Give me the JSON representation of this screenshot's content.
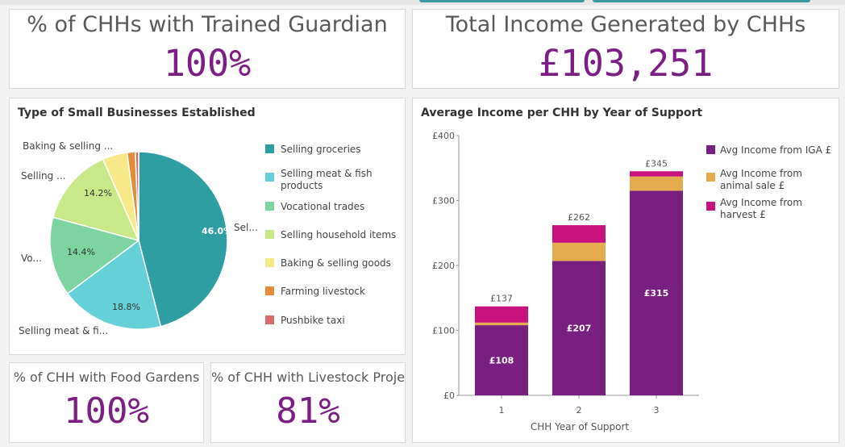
{
  "kpis": {
    "trained_guardian": {
      "title": "% of CHHs with Trained Guardian",
      "value": "100%"
    },
    "total_income": {
      "title": "Total Income Generated by CHHs",
      "value": "£103,251"
    },
    "food_gardens": {
      "title": "% of CHH with Food Gardens",
      "value": "100%"
    },
    "livestock_projects": {
      "title": "% of CHH with Livestock Proje...",
      "value": "81%"
    }
  },
  "chart_data": [
    {
      "type": "pie",
      "title": "Type of Small Businesses Established",
      "categories": [
        "Selling groceries",
        "Selling meat & fish products",
        "Vocational trades",
        "Selling household items",
        "Baking & selling goods",
        "Farming livestock",
        "Pushbike taxi"
      ],
      "values": [
        46.0,
        18.8,
        14.4,
        14.2,
        4.5,
        1.5,
        0.6
      ],
      "colors": [
        "#2e9ea3",
        "#66d0d9",
        "#7dd4a0",
        "#c8e88a",
        "#f7e88a",
        "#e58c3a",
        "#d86b6b"
      ],
      "slice_labels": [
        "46.0%",
        "18.8%",
        "14.4%",
        "14.2%",
        "",
        "",
        ""
      ],
      "outer_labels": [
        "Sel...",
        "Selling meat & fi...",
        "Vo...",
        "Selling ...",
        "Baking & selling ...",
        "",
        ""
      ],
      "legend": [
        "Selling groceries",
        "Selling meat & fish products",
        "Vocational trades",
        "Selling household items",
        "Baking & selling goods",
        "Farming livestock",
        "Pushbike taxi"
      ],
      "legend_position": "right"
    },
    {
      "type": "bar",
      "stacked": true,
      "title": "Average Income per CHH by Year of Support",
      "categories": [
        "1",
        "2",
        "3"
      ],
      "series": [
        {
          "name": "Avg Income from IGA £",
          "values": [
            108,
            207,
            315
          ],
          "color": "#78207f"
        },
        {
          "name": "Avg Income from animal sale £",
          "values": [
            4,
            28,
            22
          ],
          "color": "#e3ad4f"
        },
        {
          "name": "Avg Income from harvest £",
          "values": [
            25,
            27,
            8
          ],
          "color": "#c8127d"
        }
      ],
      "totals": [
        "£137",
        "£262",
        "£345"
      ],
      "segment_labels": [
        "£108",
        "£207",
        "£315"
      ],
      "xlabel": "CHH Year of Support",
      "ylabel": "",
      "ylim": [
        0,
        400
      ],
      "yticks": [
        "£0",
        "£100",
        "£200",
        "£300",
        "£400"
      ],
      "ytick_values": [
        0,
        100,
        200,
        300,
        400
      ],
      "legend_position": "right"
    }
  ]
}
